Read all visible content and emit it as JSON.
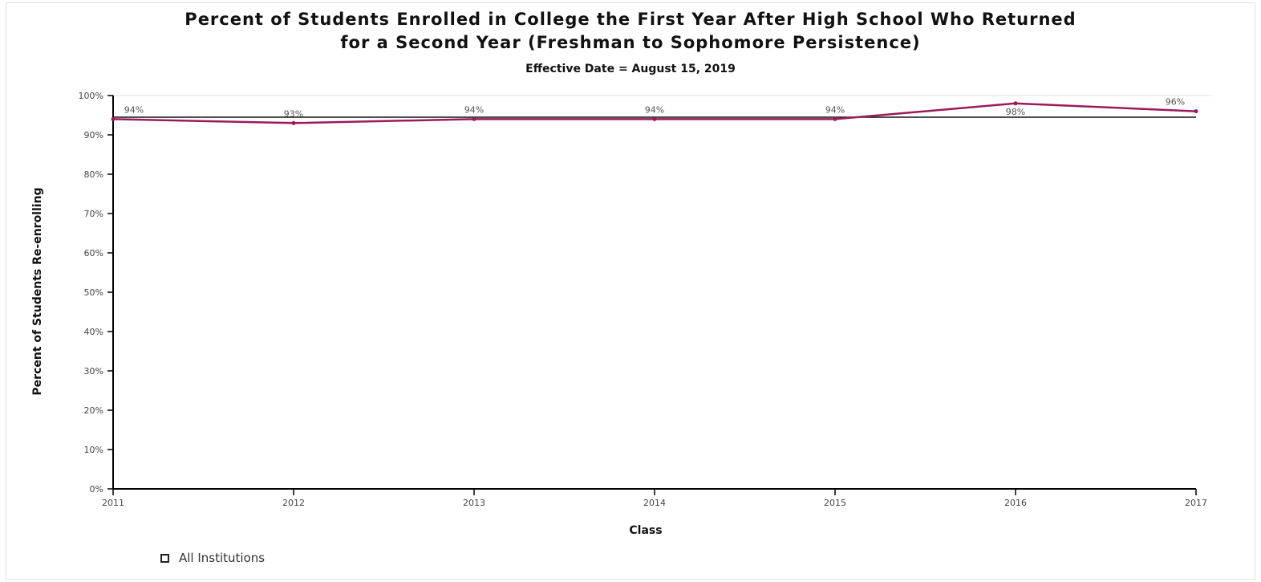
{
  "chart_data": {
    "type": "line",
    "title_line1": "Percent of Students Enrolled in College the First Year After High School Who Returned",
    "title_line2": "for a Second Year (Freshman to Sophomore Persistence)",
    "subtitle": "Effective Date = August 15, 2019",
    "xlabel": "Class",
    "ylabel": "Percent of Students Re-enrolling",
    "categories": [
      "2011",
      "2012",
      "2013",
      "2014",
      "2015",
      "2016",
      "2017"
    ],
    "yticks": [
      "0%",
      "10%",
      "20%",
      "30%",
      "40%",
      "50%",
      "60%",
      "70%",
      "80%",
      "90%",
      "100%"
    ],
    "ylim": [
      0,
      100
    ],
    "grid": false,
    "legend_position": "bottom-left",
    "series": [
      {
        "name": "All Institutions",
        "color": "#9b1b5a",
        "values": [
          94,
          93,
          94,
          94,
          94,
          98,
          96
        ],
        "labels": [
          "94%",
          "93%",
          "94%",
          "94%",
          "94%",
          "98%",
          "96%"
        ]
      }
    ],
    "reference_line": {
      "value": 94.5,
      "color": "#111111"
    }
  }
}
